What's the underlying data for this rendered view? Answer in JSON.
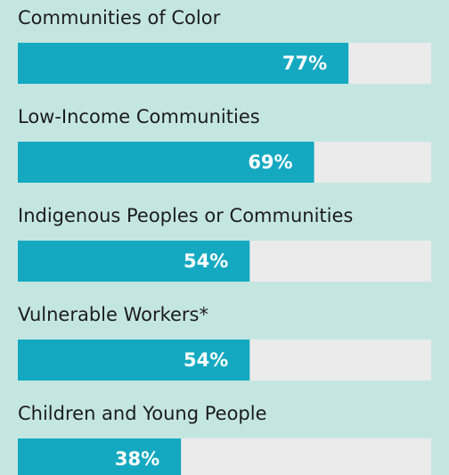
{
  "chart_data": {
    "type": "bar",
    "orientation": "horizontal",
    "categories": [
      "Communities of Color",
      "Low-Income Communities",
      "Indigenous Peoples or Communities",
      "Vulnerable Workers*",
      "Children and Young People"
    ],
    "values": [
      77,
      69,
      54,
      54,
      38
    ],
    "value_labels": [
      "77%",
      "69%",
      "54%",
      "54%",
      "38%"
    ],
    "color": "#14a9c1",
    "xlim": [
      0,
      100
    ]
  }
}
